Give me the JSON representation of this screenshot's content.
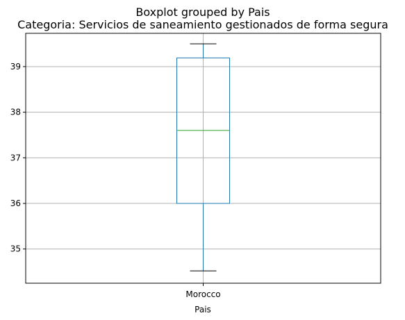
{
  "chart_data": {
    "type": "boxplot",
    "suptitle": "Boxplot grouped by Pais",
    "title": "Categoria: Servicios de saneamiento gestionados de forma segura",
    "xlabel": "Pais",
    "ylabel": "",
    "categories": [
      "Morocco"
    ],
    "boxes": [
      {
        "category": "Morocco",
        "whisker_low": 34.52,
        "q1": 36.0,
        "median": 37.6,
        "q3": 39.19,
        "whisker_high": 39.5
      }
    ],
    "ylim": [
      34.25,
      39.73
    ],
    "yticks": [
      35,
      36,
      37,
      38,
      39
    ],
    "grid": true,
    "colors": {
      "box": "#1f77b4",
      "median": "#2ca02c",
      "whisker_cap": "#000000",
      "grid": "#b0b0b0",
      "axes": "#000000"
    }
  }
}
